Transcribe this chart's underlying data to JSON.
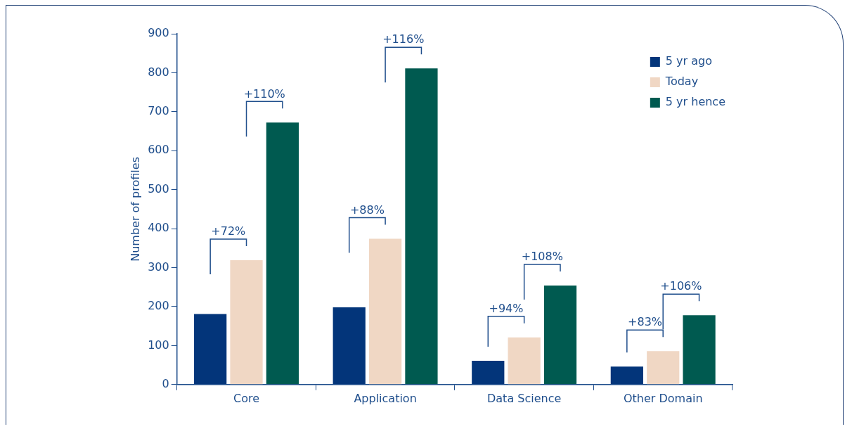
{
  "chart_data": {
    "type": "bar",
    "ylabel": "Number of profiles",
    "categories": [
      "Core",
      "Application",
      "Data Science",
      "Other Domain"
    ],
    "series": [
      {
        "name": "5 yr ago",
        "color": "#03357a",
        "values": [
          181,
          198,
          61,
          46
        ]
      },
      {
        "name": "Today",
        "color": "#f0d7c4",
        "values": [
          319,
          374,
          121,
          86
        ]
      },
      {
        "name": "5 yr hence",
        "color": "#005a50",
        "values": [
          672,
          811,
          254,
          178
        ]
      }
    ],
    "ylim": [
      0,
      900
    ],
    "yticks": [
      0,
      100,
      200,
      300,
      400,
      500,
      600,
      700,
      800,
      900
    ],
    "grid": false,
    "legend": "top right",
    "annotations": [
      "+72%",
      "+110%",
      "+88%",
      "+116%",
      "+94%",
      "+108%",
      "+83%",
      "+106%"
    ]
  }
}
